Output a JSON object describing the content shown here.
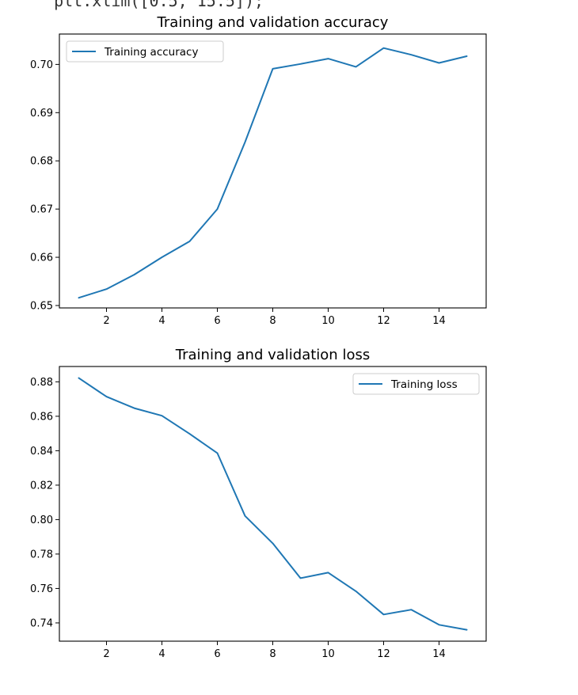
{
  "code_fragment": "   plt.xlim([0.5, 15.5]);",
  "colors": {
    "series": "#1f77b4",
    "axis": "#000000",
    "legend_border": "#cccccc"
  },
  "chart_data": [
    {
      "type": "line",
      "title": "Training and validation accuracy",
      "xlabel": "",
      "ylabel": "",
      "x": [
        1,
        2,
        3,
        4,
        5,
        6,
        7,
        8,
        9,
        10,
        11,
        12,
        13,
        14,
        15
      ],
      "series": [
        {
          "name": "Training accuracy",
          "values": [
            0.6516,
            0.6534,
            0.6564,
            0.66,
            0.6633,
            0.67,
            0.6839,
            0.6991,
            0.7001,
            0.7012,
            0.6995,
            0.7034,
            0.702,
            0.7003,
            0.7017
          ]
        }
      ],
      "xlim": [
        0.3,
        15.7
      ],
      "ylim": [
        0.6495,
        0.7063
      ],
      "xticks": [
        2,
        4,
        6,
        8,
        10,
        12,
        14
      ],
      "xtick_labels": [
        "2",
        "4",
        "6",
        "8",
        "10",
        "12",
        "14"
      ],
      "yticks": [
        0.65,
        0.66,
        0.67,
        0.68,
        0.69,
        0.7
      ],
      "ytick_labels": [
        "0.65",
        "0.66",
        "0.67",
        "0.68",
        "0.69",
        "0.70"
      ],
      "legend_position": "upper left",
      "grid": false
    },
    {
      "type": "line",
      "title": "Training  and validation loss",
      "xlabel": "",
      "ylabel": "",
      "x": [
        1,
        2,
        3,
        4,
        5,
        6,
        7,
        8,
        9,
        10,
        11,
        12,
        13,
        14,
        15
      ],
      "series": [
        {
          "name": "Training loss",
          "values": [
            0.8822,
            0.8714,
            0.8647,
            0.8603,
            0.8498,
            0.8386,
            0.8021,
            0.7862,
            0.766,
            0.7692,
            0.7584,
            0.7449,
            0.7477,
            0.7389,
            0.736
          ]
        }
      ],
      "xlim": [
        0.3,
        15.7
      ],
      "ylim": [
        0.7294,
        0.8889
      ],
      "xticks": [
        2,
        4,
        6,
        8,
        10,
        12,
        14
      ],
      "xtick_labels": [
        "2",
        "4",
        "6",
        "8",
        "10",
        "12",
        "14"
      ],
      "yticks": [
        0.74,
        0.76,
        0.78,
        0.8,
        0.82,
        0.84,
        0.86,
        0.88
      ],
      "ytick_labels": [
        "0.74",
        "0.76",
        "0.78",
        "0.80",
        "0.82",
        "0.84",
        "0.86",
        "0.88"
      ],
      "legend_position": "upper right",
      "grid": false
    }
  ]
}
